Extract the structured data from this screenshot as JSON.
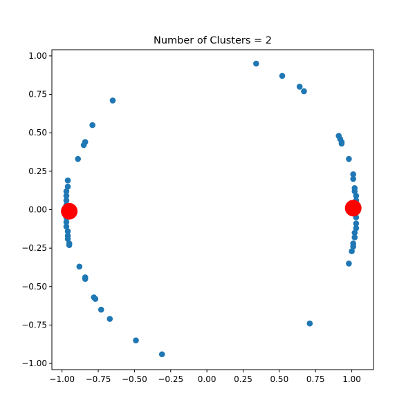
{
  "chart_data": {
    "type": "scatter",
    "title": "Number of Clusters = 2",
    "xlabel": "",
    "ylabel": "",
    "xlim": [
      -1.07,
      1.15
    ],
    "ylim": [
      -1.04,
      1.04
    ],
    "grid": false,
    "xticks": [
      "−1.00",
      "−0.75",
      "−0.50",
      "−0.25",
      "0.00",
      "0.25",
      "0.50",
      "0.75",
      "1.00"
    ],
    "xtick_values": [
      -1.0,
      -0.75,
      -0.5,
      -0.25,
      0.0,
      0.25,
      0.5,
      0.75,
      1.0
    ],
    "yticks": [
      "1.00",
      "0.75",
      "0.50",
      "0.25",
      "0.00",
      "−0.25",
      "−0.50",
      "−0.75",
      "−1.00"
    ],
    "ytick_values": [
      1.0,
      0.75,
      0.5,
      0.25,
      0.0,
      -0.25,
      -0.5,
      -0.75,
      -1.0
    ],
    "colors": {
      "points": "#1f77b4",
      "centroids": "#ff0000"
    },
    "series": [
      {
        "role": "points",
        "x": [
          0.34,
          0.52,
          0.64,
          0.67,
          -0.65,
          -0.79,
          -0.85,
          -0.84,
          -0.89,
          0.91,
          0.92,
          0.93,
          0.93,
          0.98,
          1.01,
          1.01,
          1.02,
          1.02,
          1.03,
          1.03,
          1.03,
          1.03,
          1.03,
          1.03,
          1.03,
          1.02,
          1.02,
          1.01,
          1.01,
          1.0,
          0.98,
          0.71,
          -0.96,
          -0.96,
          -0.97,
          -0.97,
          -0.97,
          -0.97,
          -0.97,
          -0.97,
          -0.97,
          -0.97,
          -0.96,
          -0.96,
          -0.96,
          -0.95,
          -0.95,
          -0.88,
          -0.84,
          -0.84,
          -0.78,
          -0.77,
          -0.73,
          -0.67,
          -0.49,
          -0.31
        ],
        "y": [
          0.95,
          0.87,
          0.8,
          0.77,
          0.71,
          0.55,
          0.42,
          0.44,
          0.33,
          0.48,
          0.46,
          0.44,
          0.43,
          0.33,
          0.23,
          0.2,
          0.14,
          0.12,
          0.09,
          0.06,
          0.03,
          -0.02,
          -0.05,
          -0.09,
          -0.12,
          -0.15,
          -0.18,
          -0.22,
          -0.24,
          -0.27,
          -0.35,
          -0.74,
          0.19,
          0.15,
          0.12,
          0.09,
          0.06,
          0.03,
          -0.02,
          -0.05,
          -0.08,
          -0.11,
          -0.14,
          -0.17,
          -0.19,
          -0.22,
          -0.23,
          -0.37,
          -0.44,
          -0.45,
          -0.57,
          -0.58,
          -0.65,
          -0.71,
          -0.85,
          -0.94
        ]
      },
      {
        "role": "centroids",
        "x": [
          -0.95,
          1.01
        ],
        "y": [
          -0.01,
          0.01
        ]
      }
    ]
  }
}
